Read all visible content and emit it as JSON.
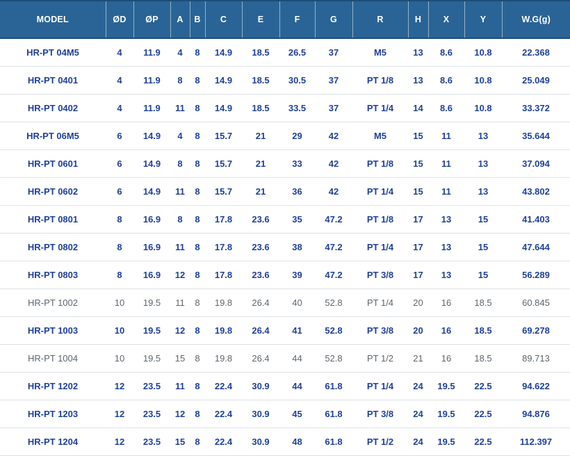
{
  "colors": {
    "header_bg": "#2a6496",
    "header_text": "#ffffff",
    "header_divider": "rgba(255,255,255,0.5)",
    "header_edge": "#1d4d79",
    "row_bg": "#ffffff",
    "row_border": "#dde1e5",
    "highlight_text": "#1f4099",
    "muted_text": "#5d656e"
  },
  "chart_data": {
    "type": "table",
    "title": "HR-PT series specification table",
    "columns": [
      "MODEL",
      "ØD",
      "ØP",
      "A",
      "B",
      "C",
      "E",
      "F",
      "G",
      "R",
      "H",
      "X",
      "Y",
      "W.G(g)"
    ],
    "row_styles": [
      "highlight",
      "highlight",
      "highlight",
      "highlight",
      "highlight",
      "highlight",
      "highlight",
      "highlight",
      "highlight",
      "muted",
      "highlight",
      "muted",
      "highlight",
      "highlight",
      "highlight"
    ],
    "rows": [
      [
        "HR-PT 04M5",
        "4",
        "11.9",
        "4",
        "8",
        "14.9",
        "18.5",
        "26.5",
        "37",
        "M5",
        "13",
        "8.6",
        "10.8",
        "22.368"
      ],
      [
        "HR-PT 0401",
        "4",
        "11.9",
        "8",
        "8",
        "14.9",
        "18.5",
        "30.5",
        "37",
        "PT 1/8",
        "13",
        "8.6",
        "10.8",
        "25.049"
      ],
      [
        "HR-PT 0402",
        "4",
        "11.9",
        "11",
        "8",
        "14.9",
        "18.5",
        "33.5",
        "37",
        "PT 1/4",
        "14",
        "8.6",
        "10.8",
        "33.372"
      ],
      [
        "HR-PT 06M5",
        "6",
        "14.9",
        "4",
        "8",
        "15.7",
        "21",
        "29",
        "42",
        "M5",
        "15",
        "11",
        "13",
        "35.644"
      ],
      [
        "HR-PT 0601",
        "6",
        "14.9",
        "8",
        "8",
        "15.7",
        "21",
        "33",
        "42",
        "PT 1/8",
        "15",
        "11",
        "13",
        "37.094"
      ],
      [
        "HR-PT 0602",
        "6",
        "14.9",
        "11",
        "8",
        "15.7",
        "21",
        "36",
        "42",
        "PT 1/4",
        "15",
        "11",
        "13",
        "43.802"
      ],
      [
        "HR-PT 0801",
        "8",
        "16.9",
        "8",
        "8",
        "17.8",
        "23.6",
        "35",
        "47.2",
        "PT 1/8",
        "17",
        "13",
        "15",
        "41.403"
      ],
      [
        "HR-PT 0802",
        "8",
        "16.9",
        "11",
        "8",
        "17.8",
        "23.6",
        "38",
        "47.2",
        "PT 1/4",
        "17",
        "13",
        "15",
        "47.644"
      ],
      [
        "HR-PT 0803",
        "8",
        "16.9",
        "12",
        "8",
        "17.8",
        "23.6",
        "39",
        "47.2",
        "PT 3/8",
        "17",
        "13",
        "15",
        "56.289"
      ],
      [
        "HR-PT 1002",
        "10",
        "19.5",
        "11",
        "8",
        "19.8",
        "26.4",
        "40",
        "52.8",
        "PT 1/4",
        "20",
        "16",
        "18.5",
        "60.845"
      ],
      [
        "HR-PT 1003",
        "10",
        "19.5",
        "12",
        "8",
        "19.8",
        "26.4",
        "41",
        "52.8",
        "PT 3/8",
        "20",
        "16",
        "18.5",
        "69.278"
      ],
      [
        "HR-PT 1004",
        "10",
        "19.5",
        "15",
        "8",
        "19.8",
        "26.4",
        "44",
        "52.8",
        "PT 1/2",
        "21",
        "16",
        "18.5",
        "89.713"
      ],
      [
        "HR-PT 1202",
        "12",
        "23.5",
        "11",
        "8",
        "22.4",
        "30.9",
        "44",
        "61.8",
        "PT 1/4",
        "24",
        "19.5",
        "22.5",
        "94.622"
      ],
      [
        "HR-PT 1203",
        "12",
        "23.5",
        "12",
        "8",
        "22.4",
        "30.9",
        "45",
        "61.8",
        "PT 3/8",
        "24",
        "19.5",
        "22.5",
        "94.876"
      ],
      [
        "HR-PT 1204",
        "12",
        "23.5",
        "15",
        "8",
        "22.4",
        "30.9",
        "48",
        "61.8",
        "PT 1/2",
        "24",
        "19.5",
        "22.5",
        "112.397"
      ]
    ]
  }
}
